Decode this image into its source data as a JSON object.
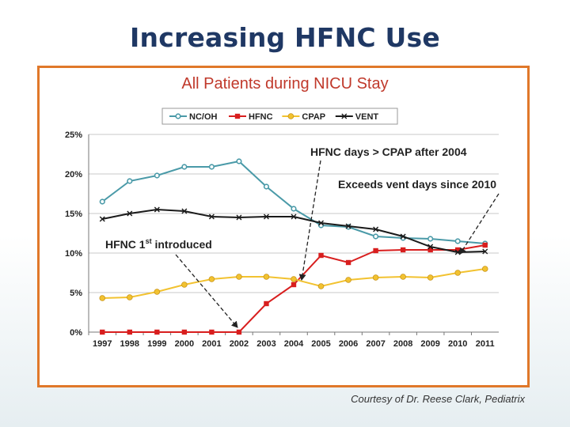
{
  "slide": {
    "title": "Increasing HFNC Use",
    "credit": "Courtesy of Dr. Reese Clark, Pediatrix"
  },
  "chart_data": {
    "type": "line",
    "title": "All Patients during NICU Stay",
    "xlabel": "",
    "ylabel": "",
    "x": [
      "1997",
      "1998",
      "1999",
      "2000",
      "2001",
      "2002",
      "2003",
      "2004",
      "2005",
      "2006",
      "2007",
      "2008",
      "2009",
      "2010",
      "2011"
    ],
    "ylim": [
      0,
      25
    ],
    "yticks": [
      "0%",
      "5%",
      "10%",
      "15%",
      "20%",
      "25%"
    ],
    "grid": true,
    "legend_position": "top",
    "series": [
      {
        "name": "NC/OH",
        "color": "#4a9aa8",
        "marker": "circle-open",
        "values": [
          16.5,
          19.1,
          19.8,
          20.9,
          20.9,
          21.6,
          18.4,
          15.6,
          13.5,
          13.3,
          12.1,
          11.9,
          11.8,
          11.5,
          11.2
        ]
      },
      {
        "name": "HFNC",
        "color": "#d81e1e",
        "marker": "square",
        "values": [
          0,
          0,
          0,
          0,
          0,
          0,
          3.6,
          6.0,
          9.7,
          8.8,
          10.3,
          10.4,
          10.4,
          10.4,
          11.0
        ]
      },
      {
        "name": "CPAP",
        "color": "#f2c230",
        "marker": "circle",
        "values": [
          4.3,
          4.4,
          5.1,
          6.0,
          6.7,
          7.0,
          7.0,
          6.7,
          5.8,
          6.6,
          6.9,
          7.0,
          6.9,
          7.5,
          8.0
        ]
      },
      {
        "name": "VENT",
        "color": "#1a1a1a",
        "marker": "x",
        "values": [
          14.3,
          15.0,
          15.5,
          15.3,
          14.6,
          14.5,
          14.6,
          14.6,
          13.8,
          13.4,
          13.0,
          12.1,
          10.8,
          10.1,
          10.2
        ]
      }
    ],
    "annotations": [
      {
        "text": "HFNC days > CPAP after 2004",
        "points_to": {
          "x": "2004",
          "y": 6.2
        }
      },
      {
        "text": "Exceeds vent days since 2010",
        "points_to": {
          "x": "2010",
          "y": 10.2
        }
      },
      {
        "text": "HFNC 1st introduced",
        "text_main": "HFNC 1",
        "superscript": "st",
        "text_rest": " introduced",
        "points_to": {
          "x": "2002",
          "y": 0
        }
      }
    ]
  }
}
